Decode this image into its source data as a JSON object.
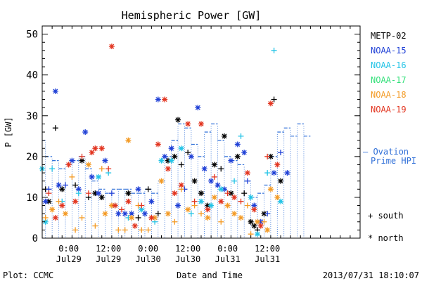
{
  "chart_data": {
    "type": "scatter",
    "title": "Hemispheric Power [GW]",
    "ylabel": "P [GW]",
    "xlabel": "Date and Time",
    "ylim": [
      0,
      52
    ],
    "y_ticks": [
      0,
      10,
      20,
      30,
      40,
      50
    ],
    "x_range_hours": [
      -8,
      88
    ],
    "x_ticks": [
      {
        "hour": 0,
        "line1": "0:00",
        "line2": "Jul29"
      },
      {
        "hour": 12,
        "line1": "12:00",
        "line2": "Jul29"
      },
      {
        "hour": 24,
        "line1": "0:00",
        "line2": "Jul30"
      },
      {
        "hour": 36,
        "line1": "12:00",
        "line2": "Jul30"
      },
      {
        "hour": 48,
        "line1": "0:00",
        "line2": "Jul31"
      },
      {
        "hour": 60,
        "line1": "12:00",
        "line2": "Jul31"
      }
    ],
    "legend": {
      "placement": "right",
      "entries": [
        {
          "name": "METP-02",
          "color": "#000000"
        },
        {
          "name": "NOAA-15",
          "color": "#1e3fd6"
        },
        {
          "name": "NOAA-16",
          "color": "#22c3e6"
        },
        {
          "name": "NOAA-17",
          "color": "#33e07a"
        },
        {
          "name": "NOAA-18",
          "color": "#f39a24"
        },
        {
          "name": "NOAA-19",
          "color": "#e2331e"
        }
      ],
      "ovation_label_1": "— Ovation",
      "ovation_label_2": "Prime HPI",
      "south_label": "+ south",
      "north_label": "* north"
    },
    "ovation_color": "#2f6fd8",
    "ovation": [
      [
        -8,
        24
      ],
      [
        -7,
        20
      ],
      [
        -5,
        19
      ],
      [
        -3,
        17
      ],
      [
        -1,
        18
      ],
      [
        1,
        19
      ],
      [
        3,
        20
      ],
      [
        5,
        17
      ],
      [
        7,
        14
      ],
      [
        9,
        12
      ],
      [
        11,
        11
      ],
      [
        13,
        12
      ],
      [
        15,
        12
      ],
      [
        17,
        12
      ],
      [
        19,
        11
      ],
      [
        21,
        11
      ],
      [
        23,
        12
      ],
      [
        25,
        11
      ],
      [
        27,
        14
      ],
      [
        29,
        20
      ],
      [
        31,
        24
      ],
      [
        33,
        28
      ],
      [
        35,
        27
      ],
      [
        37,
        23
      ],
      [
        39,
        20
      ],
      [
        41,
        26
      ],
      [
        43,
        28
      ],
      [
        45,
        24
      ],
      [
        47,
        20
      ],
      [
        49,
        19
      ],
      [
        51,
        18
      ],
      [
        53,
        14
      ],
      [
        55,
        10
      ],
      [
        57,
        11
      ],
      [
        59,
        13
      ],
      [
        61,
        20
      ],
      [
        63,
        26
      ],
      [
        65,
        27
      ],
      [
        67,
        25
      ],
      [
        69,
        28
      ],
      [
        71,
        25
      ]
    ],
    "series": [
      {
        "name": "METP-02",
        "color": "#000000",
        "points": [
          [
            -7,
            12,
            "+"
          ],
          [
            -6,
            9,
            "*"
          ],
          [
            -4,
            27,
            "+"
          ],
          [
            -2,
            12,
            "*"
          ],
          [
            2,
            13,
            "+"
          ],
          [
            4,
            19,
            "*"
          ],
          [
            6,
            10,
            "+"
          ],
          [
            8,
            11,
            "*"
          ],
          [
            10,
            10,
            "*"
          ],
          [
            14,
            8,
            "+"
          ],
          [
            18,
            11,
            "*"
          ],
          [
            21,
            5,
            "+"
          ],
          [
            24,
            12,
            "+"
          ],
          [
            27,
            6,
            "+"
          ],
          [
            30,
            19,
            "*"
          ],
          [
            32,
            20,
            "*"
          ],
          [
            33,
            29,
            "*"
          ],
          [
            34,
            18,
            "+"
          ],
          [
            36,
            21,
            "+"
          ],
          [
            38,
            14,
            "*"
          ],
          [
            40,
            11,
            "*"
          ],
          [
            42,
            8,
            "*"
          ],
          [
            44,
            18,
            "*"
          ],
          [
            46,
            17,
            "+"
          ],
          [
            47,
            25,
            "*"
          ],
          [
            49,
            11,
            "*"
          ],
          [
            51,
            20,
            "*"
          ],
          [
            53,
            11,
            "+"
          ],
          [
            55,
            4,
            "*"
          ],
          [
            56,
            3,
            "*"
          ],
          [
            57,
            2,
            "+"
          ],
          [
            59,
            6,
            "*"
          ],
          [
            61,
            20,
            "*"
          ],
          [
            62,
            34,
            "+"
          ],
          [
            64,
            14,
            "*"
          ]
        ]
      },
      {
        "name": "NOAA-15",
        "color": "#1e3fd6",
        "points": [
          [
            -7,
            9,
            "*"
          ],
          [
            -6,
            12,
            "+"
          ],
          [
            -4,
            36,
            "*"
          ],
          [
            -3,
            13,
            "*"
          ],
          [
            -1,
            13,
            "+"
          ],
          [
            1,
            19,
            "*"
          ],
          [
            3,
            12,
            "*"
          ],
          [
            5,
            26,
            "*"
          ],
          [
            7,
            15,
            "*"
          ],
          [
            9,
            11,
            "*"
          ],
          [
            11,
            19,
            "*"
          ],
          [
            13,
            11,
            "+"
          ],
          [
            15,
            6,
            "*"
          ],
          [
            17,
            6,
            "*"
          ],
          [
            19,
            6,
            "*"
          ],
          [
            21,
            12,
            "*"
          ],
          [
            23,
            6,
            "*"
          ],
          [
            25,
            9,
            "*"
          ],
          [
            27,
            34,
            "*"
          ],
          [
            29,
            20,
            "*"
          ],
          [
            31,
            22,
            "*"
          ],
          [
            33,
            8,
            "*"
          ],
          [
            35,
            12,
            "+"
          ],
          [
            37,
            20,
            "*"
          ],
          [
            39,
            32,
            "*"
          ],
          [
            41,
            17,
            "*"
          ],
          [
            43,
            14,
            "*"
          ],
          [
            45,
            13,
            "*"
          ],
          [
            47,
            12,
            "*"
          ],
          [
            49,
            19,
            "*"
          ],
          [
            51,
            23,
            "*"
          ],
          [
            53,
            21,
            "*"
          ],
          [
            54,
            14,
            "+"
          ],
          [
            56,
            8,
            "*"
          ],
          [
            58,
            4,
            "*"
          ],
          [
            60,
            6,
            "+"
          ],
          [
            62,
            16,
            "*"
          ],
          [
            64,
            21,
            "+"
          ],
          [
            66,
            16,
            "*"
          ]
        ]
      },
      {
        "name": "NOAA-16",
        "color": "#22c3e6",
        "points": [
          [
            -8,
            17,
            "*"
          ],
          [
            -7,
            4,
            "*"
          ],
          [
            -5,
            17,
            "+"
          ],
          [
            -2,
            9,
            "+"
          ],
          [
            3,
            11,
            "+"
          ],
          [
            9,
            15,
            "*"
          ],
          [
            12,
            16,
            "+"
          ],
          [
            18,
            5,
            "+"
          ],
          [
            22,
            7,
            "*"
          ],
          [
            26,
            4,
            "+"
          ],
          [
            28,
            19,
            "*"
          ],
          [
            31,
            19,
            "*"
          ],
          [
            34,
            22,
            "*"
          ],
          [
            37,
            6,
            "+"
          ],
          [
            40,
            9,
            "*"
          ],
          [
            43,
            8,
            "*"
          ],
          [
            46,
            12,
            "*"
          ],
          [
            50,
            14,
            "+"
          ],
          [
            52,
            25,
            "+"
          ],
          [
            55,
            10,
            "*"
          ],
          [
            57,
            1,
            "*"
          ],
          [
            60,
            16,
            "+"
          ],
          [
            62,
            46,
            "+"
          ],
          [
            64,
            9,
            "*"
          ]
        ]
      },
      {
        "name": "NOAA-18",
        "color": "#f39a24",
        "points": [
          [
            -7,
            5,
            "+"
          ],
          [
            -5,
            7,
            "*"
          ],
          [
            -3,
            9,
            "+"
          ],
          [
            -1,
            6,
            "*"
          ],
          [
            1,
            15,
            "+"
          ],
          [
            2,
            2,
            "+"
          ],
          [
            4,
            5,
            "+"
          ],
          [
            6,
            18,
            "*"
          ],
          [
            8,
            3,
            "+"
          ],
          [
            10,
            17,
            "+"
          ],
          [
            11,
            6,
            "*"
          ],
          [
            13,
            8,
            "*"
          ],
          [
            15,
            2,
            "+"
          ],
          [
            17,
            2,
            "+"
          ],
          [
            18,
            24,
            "*"
          ],
          [
            19,
            5,
            "*"
          ],
          [
            21,
            8,
            "+"
          ],
          [
            22,
            2,
            "+"
          ],
          [
            24,
            2,
            "+"
          ],
          [
            26,
            5,
            "*"
          ],
          [
            28,
            14,
            "*"
          ],
          [
            30,
            6,
            "*"
          ],
          [
            32,
            4,
            "+"
          ],
          [
            34,
            12,
            "+"
          ],
          [
            36,
            7,
            "*"
          ],
          [
            38,
            8,
            "+"
          ],
          [
            40,
            6,
            "+"
          ],
          [
            42,
            5,
            "*"
          ],
          [
            44,
            10,
            "*"
          ],
          [
            46,
            4,
            "+"
          ],
          [
            48,
            8,
            "*"
          ],
          [
            50,
            6,
            "*"
          ],
          [
            52,
            5,
            "*"
          ],
          [
            54,
            8,
            "+"
          ],
          [
            55,
            1,
            "+"
          ],
          [
            57,
            4,
            "*"
          ],
          [
            59,
            4,
            "+"
          ],
          [
            60,
            2,
            "*"
          ],
          [
            61,
            12,
            "*"
          ],
          [
            63,
            10,
            "*"
          ]
        ]
      },
      {
        "name": "NOAA-19",
        "color": "#e2331e",
        "points": [
          [
            -6,
            11,
            "+"
          ],
          [
            -4,
            5,
            "*"
          ],
          [
            -2,
            8,
            "*"
          ],
          [
            0,
            18,
            "*"
          ],
          [
            2,
            9,
            "*"
          ],
          [
            4,
            20,
            "+"
          ],
          [
            6,
            11,
            "+"
          ],
          [
            7,
            21,
            "*"
          ],
          [
            8,
            22,
            "*"
          ],
          [
            10,
            22,
            "*"
          ],
          [
            12,
            17,
            "+"
          ],
          [
            13,
            47,
            "*"
          ],
          [
            14,
            8,
            "*"
          ],
          [
            16,
            7,
            "+"
          ],
          [
            18,
            9,
            "*"
          ],
          [
            20,
            3,
            "*"
          ],
          [
            22,
            8,
            "+"
          ],
          [
            25,
            5,
            "*"
          ],
          [
            27,
            23,
            "*"
          ],
          [
            29,
            34,
            "*"
          ],
          [
            30,
            17,
            "*"
          ],
          [
            32,
            11,
            "*"
          ],
          [
            34,
            13,
            "*"
          ],
          [
            36,
            28,
            "*"
          ],
          [
            38,
            9,
            "+"
          ],
          [
            40,
            28,
            "*"
          ],
          [
            42,
            7,
            "*"
          ],
          [
            44,
            15,
            "+"
          ],
          [
            46,
            9,
            "*"
          ],
          [
            48,
            11,
            "+"
          ],
          [
            50,
            10,
            "*"
          ],
          [
            52,
            9,
            "+"
          ],
          [
            54,
            16,
            "*"
          ],
          [
            56,
            7,
            "*"
          ],
          [
            58,
            3,
            "*"
          ],
          [
            60,
            20,
            "+"
          ],
          [
            61,
            33,
            "*"
          ],
          [
            63,
            18,
            "*"
          ]
        ]
      }
    ]
  },
  "footer": {
    "plot_credit": "Plot: CCMC",
    "timestamp": "2013/07/31 18:10:07"
  }
}
